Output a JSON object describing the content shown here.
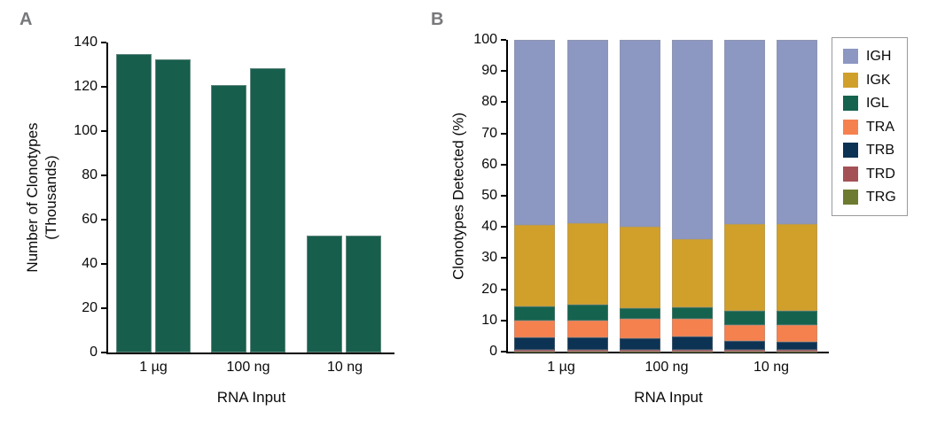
{
  "figure": {
    "background_color": "#ffffff",
    "panel_letter_color": "#77787b",
    "axis_text_color": "#0a0a0a"
  },
  "chart_data": [
    {
      "type": "bar",
      "panel_label": "A",
      "title": "",
      "xlabel": "RNA Input",
      "ylabel": "Number of Clonotypes (Thousands)",
      "ylabel_lines": [
        "Number of Clonotypes",
        "(Thousands)"
      ],
      "categories": [
        "1 µg",
        "100 ng",
        "10 ng"
      ],
      "bars_per_category": 2,
      "values": [
        [
          135,
          132.5
        ],
        [
          121,
          128.5
        ],
        [
          53,
          53
        ]
      ],
      "ylim": [
        0,
        140
      ],
      "yticks": [
        0,
        20,
        40,
        60,
        80,
        100,
        120,
        140
      ],
      "grid": false,
      "bar_color": "#175e4d"
    },
    {
      "type": "stacked-bar",
      "panel_label": "B",
      "title": "",
      "xlabel": "RNA Input",
      "ylabel": "Clonotypes Detected (%)",
      "categories": [
        "1 µg",
        "100 ng",
        "10 ng"
      ],
      "bars_per_category": 2,
      "ylim": [
        0,
        100
      ],
      "yticks": [
        0,
        10,
        20,
        30,
        40,
        50,
        60,
        70,
        80,
        90,
        100
      ],
      "grid": false,
      "stack_order_bottom_to_top": [
        "TRG",
        "TRD",
        "TRB",
        "TRA",
        "IGL",
        "IGK",
        "IGH"
      ],
      "series": [
        {
          "name": "IGH",
          "color": "#8c97c2",
          "values": [
            59.3,
            58.9,
            59.9,
            64.0,
            59.0,
            59.2
          ]
        },
        {
          "name": "IGK",
          "color": "#d1a02b",
          "values": [
            26.2,
            26.0,
            26.1,
            21.7,
            28.0,
            27.8
          ]
        },
        {
          "name": "IGL",
          "color": "#15634e",
          "values": [
            4.5,
            5.1,
            3.5,
            3.7,
            4.5,
            4.6
          ]
        },
        {
          "name": "TRA",
          "color": "#f5814f",
          "values": [
            5.4,
            5.4,
            6.2,
            5.8,
            5.2,
            5.2
          ]
        },
        {
          "name": "TRB",
          "color": "#0d3354",
          "values": [
            4.15,
            4.15,
            3.85,
            4.35,
            2.85,
            2.75
          ]
        },
        {
          "name": "TRD",
          "color": "#a45156",
          "values": [
            0.3,
            0.3,
            0.3,
            0.3,
            0.3,
            0.3
          ]
        },
        {
          "name": "TRG",
          "color": "#6c7b2f",
          "values": [
            0.15,
            0.15,
            0.15,
            0.15,
            0.15,
            0.15
          ]
        }
      ],
      "legend": {
        "position": "right",
        "items": [
          "IGH",
          "IGK",
          "IGL",
          "TRA",
          "TRB",
          "TRD",
          "TRG"
        ]
      }
    }
  ]
}
